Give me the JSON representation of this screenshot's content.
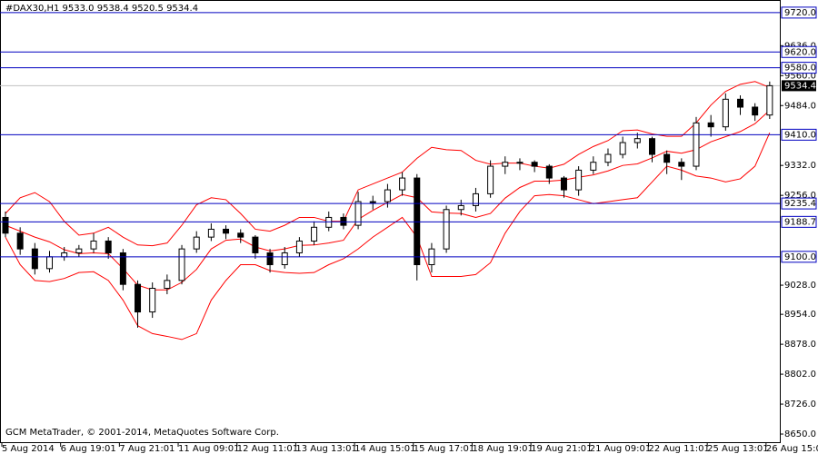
{
  "chart_data": {
    "type": "candlestick",
    "title": "#DAX30,H1  9533.0 9538.4 9520.5 9534.4",
    "footer": "GCM MetaTrader, © 2001-2014, MetaQuotes Software Corp.",
    "categories": [
      "5 Aug 2014",
      null,
      null,
      null,
      "6 Aug 19:01",
      null,
      null,
      null,
      "7 Aug 21:01",
      null,
      null,
      null,
      "11 Aug 09:01",
      null,
      null,
      null,
      "12 Aug 11:01",
      null,
      null,
      null,
      "13 Aug 13:01",
      null,
      null,
      null,
      "14 Aug 15:01",
      null,
      null,
      null,
      "15 Aug 17:01",
      null,
      null,
      null,
      "18 Aug 19:01",
      null,
      null,
      null,
      "19 Aug 21:01",
      null,
      null,
      null,
      "21 Aug 09:01",
      null,
      null,
      null,
      "22 Aug 11:01",
      null,
      null,
      null,
      "25 Aug 13:01",
      null,
      null,
      null,
      "26 Aug 15:01"
    ],
    "open": [
      9200,
      9160,
      9120,
      9070,
      9100,
      9110,
      9120,
      9140,
      9110,
      9030,
      8960,
      9020,
      9040,
      9120,
      9150,
      9170,
      9160,
      9150,
      9110,
      9080,
      9110,
      9140,
      9175,
      9200,
      9180,
      9240,
      9240,
      9270,
      9300,
      9080,
      9120,
      9220,
      9230,
      9260,
      9330,
      9340,
      9340,
      9330,
      9300,
      9270,
      9320,
      9340,
      9360,
      9390,
      9400,
      9360,
      9340,
      9330,
      9440,
      9430,
      9500,
      9480,
      9460
    ],
    "high": [
      9215,
      9175,
      9135,
      9115,
      9125,
      9130,
      9160,
      9150,
      9120,
      9040,
      9035,
      9055,
      9130,
      9165,
      9185,
      9180,
      9170,
      9155,
      9120,
      9125,
      9150,
      9190,
      9215,
      9210,
      9265,
      9255,
      9285,
      9315,
      9310,
      9135,
      9230,
      9245,
      9275,
      9345,
      9355,
      9350,
      9345,
      9335,
      9305,
      9330,
      9355,
      9375,
      9405,
      9415,
      9405,
      9370,
      9350,
      9455,
      9460,
      9515,
      9510,
      9490,
      9545
    ],
    "low": [
      9150,
      9105,
      9055,
      9060,
      9090,
      9100,
      9110,
      9095,
      9015,
      8920,
      8945,
      9005,
      9030,
      9110,
      9140,
      9145,
      9135,
      9095,
      9060,
      9070,
      9100,
      9130,
      9165,
      9170,
      9170,
      9220,
      9225,
      9255,
      9040,
      9060,
      9110,
      9205,
      9215,
      9250,
      9310,
      9320,
      9315,
      9285,
      9250,
      9255,
      9310,
      9330,
      9350,
      9375,
      9340,
      9310,
      9295,
      9320,
      9405,
      9420,
      9460,
      9445,
      9450
    ],
    "close": [
      9160,
      9120,
      9070,
      9100,
      9110,
      9120,
      9140,
      9110,
      9030,
      8960,
      9020,
      9040,
      9120,
      9150,
      9170,
      9160,
      9150,
      9110,
      9080,
      9110,
      9140,
      9175,
      9200,
      9180,
      9240,
      9240,
      9270,
      9300,
      9080,
      9120,
      9220,
      9230,
      9260,
      9330,
      9340,
      9340,
      9330,
      9300,
      9270,
      9320,
      9340,
      9360,
      9390,
      9400,
      9360,
      9340,
      9330,
      9440,
      9430,
      9500,
      9480,
      9460,
      9534.4
    ],
    "up_color": "#ffffff",
    "down_color": "#000000",
    "bands": {
      "color": "#ff0000",
      "upper": [
        9210,
        9250,
        9263,
        9240,
        9190,
        9155,
        9160,
        9175,
        9150,
        9130,
        9128,
        9135,
        9180,
        9232,
        9250,
        9245,
        9210,
        9170,
        9165,
        9180,
        9200,
        9200,
        9190,
        9190,
        9270,
        9285,
        9300,
        9315,
        9350,
        9378,
        9372,
        9370,
        9345,
        9335,
        9338,
        9338,
        9330,
        9325,
        9335,
        9360,
        9380,
        9395,
        9420,
        9422,
        9412,
        9406,
        9406,
        9440,
        9485,
        9520,
        9538,
        9545,
        9530
      ],
      "middle": [
        9180,
        9165,
        9150,
        9138,
        9118,
        9108,
        9110,
        9108,
        9070,
        9028,
        9016,
        9016,
        9035,
        9068,
        9120,
        9142,
        9145,
        9125,
        9115,
        9120,
        9129,
        9130,
        9135,
        9142,
        9195,
        9218,
        9238,
        9258,
        9250,
        9214,
        9211,
        9210,
        9200,
        9210,
        9249,
        9276,
        9292,
        9292,
        9295,
        9302,
        9308,
        9318,
        9332,
        9336,
        9351,
        9368,
        9363,
        9372,
        9392,
        9405,
        9418,
        9438,
        9472
      ],
      "lower": [
        9150,
        9080,
        9040,
        9037,
        9045,
        9060,
        9062,
        9040,
        8990,
        8925,
        8905,
        8898,
        8890,
        8905,
        8990,
        9040,
        9080,
        9080,
        9065,
        9060,
        9058,
        9060,
        9080,
        9095,
        9120,
        9150,
        9175,
        9200,
        9150,
        9050,
        9050,
        9050,
        9055,
        9085,
        9160,
        9215,
        9255,
        9258,
        9255,
        9245,
        9235,
        9240,
        9245,
        9250,
        9290,
        9330,
        9320,
        9305,
        9300,
        9290,
        9298,
        9330,
        9415
      ]
    },
    "level_color": "#0000c0",
    "levels": [
      {
        "value": 9720,
        "label": "9720.0"
      },
      {
        "value": 9620,
        "label": "9620.0"
      },
      {
        "value": 9580,
        "label": "9580.0"
      },
      {
        "value": 9410,
        "label": "9410.0"
      },
      {
        "value": 9235.4,
        "label": "9235.4"
      },
      {
        "value": 9188.7,
        "label": "9188.7"
      },
      {
        "value": 9100,
        "label": "9100.0"
      }
    ],
    "current_price": {
      "value": 9534.4,
      "label": "9534.4"
    },
    "ylim": [
      8627,
      9752
    ],
    "yticks": [
      {
        "value": 9636,
        "label": "9636.0"
      },
      {
        "value": 9560,
        "label": "9560.0"
      },
      {
        "value": 9484,
        "label": "9484.0"
      },
      {
        "value": 9332,
        "label": "9332.0"
      },
      {
        "value": 9256,
        "label": "9256.0"
      },
      {
        "value": 9028,
        "label": "9028.0"
      },
      {
        "value": 8954,
        "label": "8954.0"
      },
      {
        "value": 8878,
        "label": "8878.0"
      },
      {
        "value": 8802,
        "label": "8802.0"
      },
      {
        "value": 8726,
        "label": "8726.0"
      },
      {
        "value": 8650,
        "label": "8650.0"
      }
    ]
  }
}
